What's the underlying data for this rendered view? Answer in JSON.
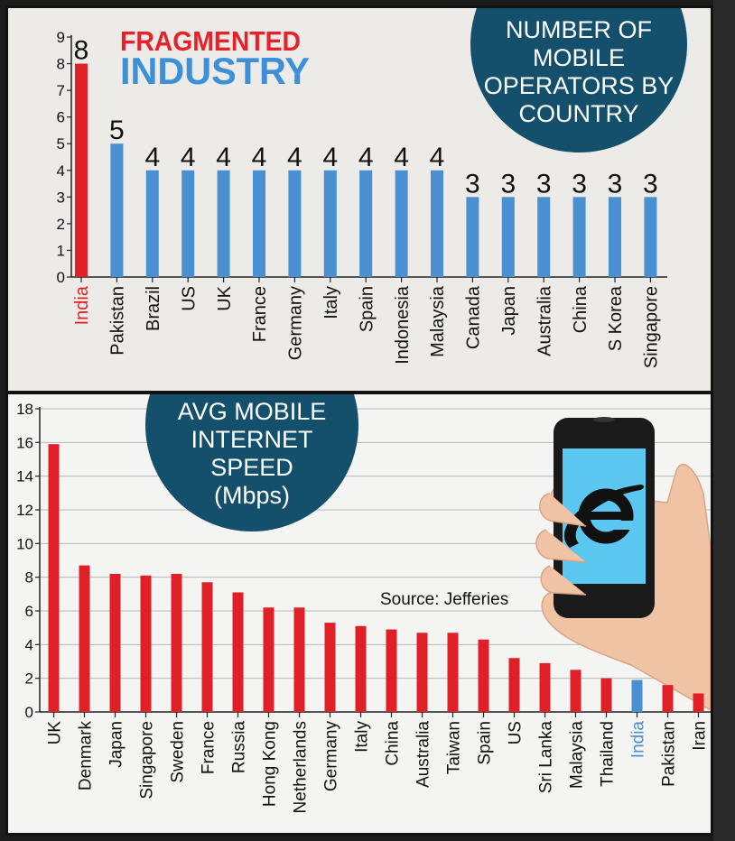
{
  "brand": {
    "title_line1": "FRAGMENTED",
    "title_line2": "INDUSTRY",
    "title_line1_color": "#e8202a",
    "title_line2_color": "#3d8fd6"
  },
  "colors": {
    "red": "#e02027",
    "blue": "#4a8fd0",
    "badge": "#14506b",
    "axis": "#222222"
  },
  "source": "Source: Jefferies",
  "chart_data": [
    {
      "type": "bar",
      "title_lines": [
        "NUMBER OF",
        "MOBILE",
        "OPERATORS BY",
        "COUNTRY"
      ],
      "categories": [
        "India",
        "Pakistan",
        "Brazil",
        "US",
        "UK",
        "France",
        "Germany",
        "Italy",
        "Spain",
        "Indonesia",
        "Malaysia",
        "Canada",
        "Japan",
        "Australia",
        "China",
        "S Korea",
        "Singapore"
      ],
      "values": [
        8,
        5,
        4,
        4,
        4,
        4,
        4,
        4,
        4,
        4,
        4,
        3,
        3,
        3,
        3,
        3,
        3
      ],
      "highlight": "India",
      "ylim": [
        0,
        9
      ],
      "yticks": [
        0,
        1,
        2,
        3,
        4,
        5,
        6,
        7,
        8,
        9
      ],
      "data_labels": true,
      "xlabel": "",
      "ylabel": ""
    },
    {
      "type": "bar",
      "title_lines": [
        "AVG MOBILE",
        "INTERNET",
        "SPEED",
        "(Mbps)"
      ],
      "categories": [
        "UK",
        "Denmark",
        "Japan",
        "Singapore",
        "Sweden",
        "France",
        "Russia",
        "Hong Kong",
        "Netherlands",
        "Germany",
        "Italy",
        "China",
        "Australia",
        "Taiwan",
        "Spain",
        "US",
        "Sri Lanka",
        "Malaysia",
        "Thailand",
        "India",
        "Pakistan",
        "Iran"
      ],
      "values": [
        15.9,
        8.7,
        8.2,
        8.1,
        8.2,
        7.7,
        7.1,
        6.2,
        6.2,
        5.3,
        5.1,
        4.9,
        4.7,
        4.7,
        4.3,
        3.2,
        2.9,
        2.5,
        2.0,
        1.9,
        1.6,
        1.1
      ],
      "highlight": "India",
      "ylim": [
        0,
        18
      ],
      "yticks": [
        0,
        2,
        4,
        6,
        8,
        10,
        12,
        14,
        16,
        18
      ],
      "data_labels": false,
      "xlabel": "",
      "ylabel": ""
    }
  ]
}
